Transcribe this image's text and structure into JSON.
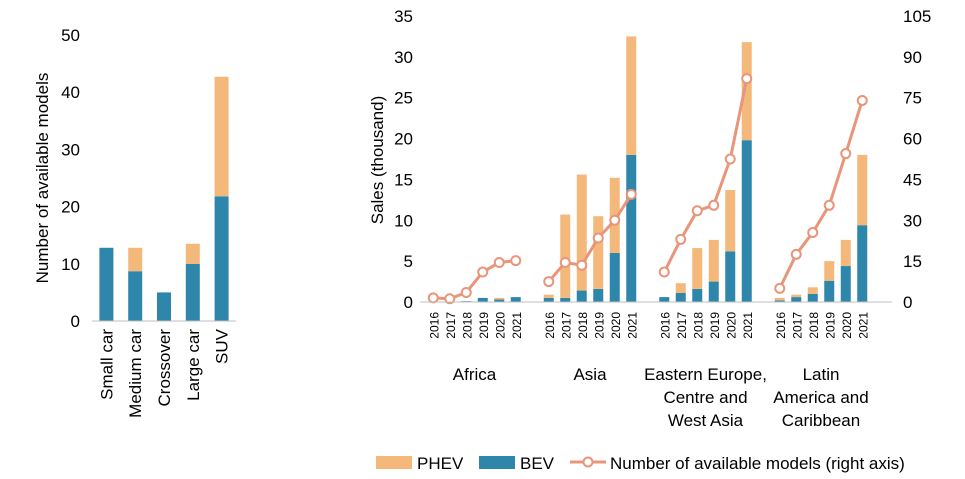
{
  "colors": {
    "phev": "#F4B97A",
    "bev": "#2E86AB",
    "line": "#E8957A",
    "axis": "#BFBFBF"
  },
  "chart_data": [
    {
      "type": "bar",
      "stacked": true,
      "categories": [
        "Small car",
        "Medium car",
        "Crossover",
        "Large car",
        "SUV"
      ],
      "series": [
        {
          "name": "BEV",
          "values": [
            12.8,
            8.7,
            5,
            10,
            21.8
          ]
        },
        {
          "name": "PHEV",
          "values": [
            0,
            4.1,
            0,
            3.5,
            20.9
          ]
        }
      ],
      "ylabel": "Number of available models",
      "ylim": [
        0,
        50
      ],
      "yticks": [
        0,
        10,
        20,
        30,
        40,
        50
      ]
    },
    {
      "type": "bar",
      "stacked": true,
      "ylabel": "Sales (thousand)",
      "ylim": [
        0,
        35
      ],
      "yticks": [
        0,
        5,
        10,
        15,
        20,
        25,
        30,
        35
      ],
      "y2lim": [
        0,
        105
      ],
      "y2ticks": [
        0,
        15,
        30,
        45,
        60,
        75,
        90,
        105
      ],
      "years": [
        "2016",
        "2017",
        "2018",
        "2019",
        "2020",
        "2021"
      ],
      "groups": [
        {
          "label_lines": [
            "Africa"
          ],
          "bev": [
            0.05,
            0.05,
            0.1,
            0.5,
            0.3,
            0.6
          ],
          "phev": [
            0,
            0,
            0,
            0,
            0.2,
            0
          ],
          "models": [
            1.5,
            1.2,
            3.5,
            11,
            14.5,
            15.2
          ]
        },
        {
          "label_lines": [
            "Asia"
          ],
          "bev": [
            0.5,
            0.5,
            1.4,
            1.6,
            6,
            18
          ],
          "phev": [
            0.4,
            10.2,
            14.2,
            8.9,
            9.2,
            14.5
          ],
          "models": [
            7.5,
            14.5,
            13.5,
            23.5,
            30,
            39.5
          ]
        },
        {
          "label_lines": [
            "Eastern Europe,",
            "Centre and",
            "West Asia"
          ],
          "bev": [
            0.6,
            1.1,
            1.6,
            2.5,
            6.2,
            19.8
          ],
          "phev": [
            0,
            1.2,
            5,
            5.1,
            7.5,
            12
          ],
          "models": [
            11,
            23,
            33.5,
            35.5,
            52.5,
            82
          ]
        },
        {
          "label_lines": [
            "Latin",
            "America and",
            "Caribbean"
          ],
          "bev": [
            0.2,
            0.6,
            1,
            2.6,
            4.4,
            9.4
          ],
          "phev": [
            0.3,
            0.3,
            0.8,
            2.4,
            3.2,
            8.6
          ],
          "models": [
            5,
            17.5,
            25.5,
            35.5,
            54.5,
            74
          ]
        }
      ],
      "legend": {
        "position": "bottom",
        "phev": "PHEV",
        "bev": "BEV",
        "line": "Number of available models (right axis)"
      }
    }
  ]
}
